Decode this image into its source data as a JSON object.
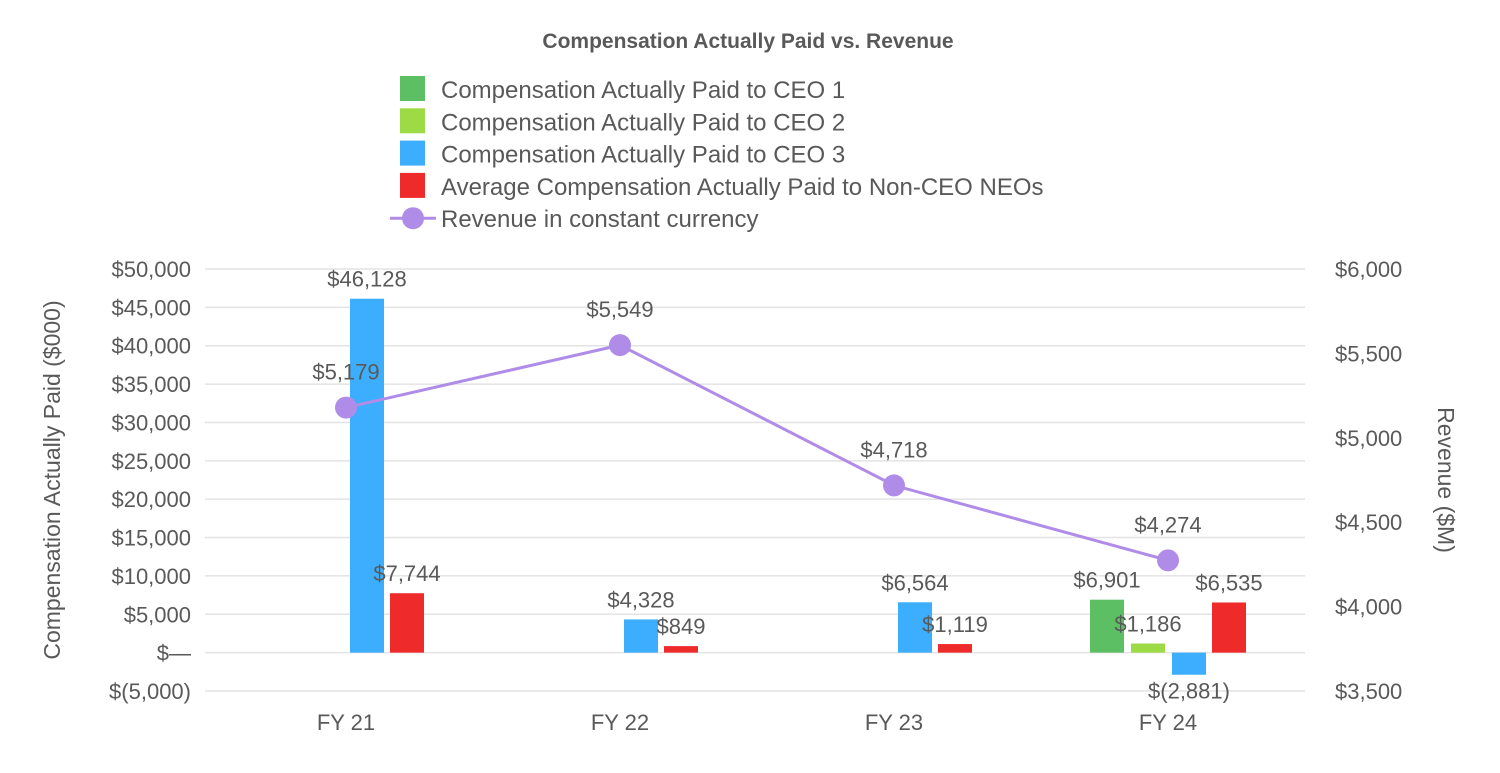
{
  "chart_data": {
    "type": "bar+line",
    "title": "Compensation Actually Paid vs. Revenue",
    "categories": [
      "FY 21",
      "FY 22",
      "FY 23",
      "FY 24"
    ],
    "ylabel": "Compensation Actually Paid ($000)",
    "y2label": "Revenue ($M)",
    "ylim": [
      -5000,
      50000
    ],
    "y2lim": [
      3500,
      6000
    ],
    "yticks": [
      "$(5,000)",
      "$—",
      "$5,000",
      "$10,000",
      "$15,000",
      "$20,000",
      "$25,000",
      "$30,000",
      "$35,000",
      "$40,000",
      "$45,000",
      "$50,000"
    ],
    "y2ticks": [
      "$3,500",
      "$4,000",
      "$4,500",
      "$5,000",
      "$5,500",
      "$6,000"
    ],
    "grid": true,
    "legend_position": "top",
    "series": [
      {
        "name": "Compensation Actually Paid to CEO 1",
        "kind": "bar",
        "axis": "left",
        "color": "#5cbf63",
        "values": [
          null,
          null,
          null,
          6901
        ],
        "labels": [
          "",
          "",
          "",
          "$6,901"
        ]
      },
      {
        "name": "Compensation Actually Paid to CEO 2",
        "kind": "bar",
        "axis": "left",
        "color": "#9cdb46",
        "values": [
          null,
          null,
          null,
          1186
        ],
        "labels": [
          "",
          "",
          "",
          "$1,186"
        ]
      },
      {
        "name": "Compensation Actually Paid to CEO 3",
        "kind": "bar",
        "axis": "left",
        "color": "#3daefd",
        "values": [
          46128,
          4328,
          6564,
          -2881
        ],
        "labels": [
          "$46,128",
          "$4,328",
          "$6,564",
          "$(2,881)"
        ]
      },
      {
        "name": "Average Compensation Actually Paid to Non-CEO NEOs",
        "kind": "bar",
        "axis": "left",
        "color": "#ee2a2a",
        "values": [
          7744,
          849,
          1119,
          6535
        ],
        "labels": [
          "$7,744",
          "$849",
          "$1,119",
          "$6,535"
        ]
      },
      {
        "name": "Revenue in constant currency",
        "kind": "line",
        "axis": "right",
        "color": "#b08ce9",
        "values": [
          5179,
          5549,
          4718,
          4274
        ],
        "labels": [
          "$5,179",
          "$5,549",
          "$4,718",
          "$4,274"
        ]
      }
    ]
  }
}
